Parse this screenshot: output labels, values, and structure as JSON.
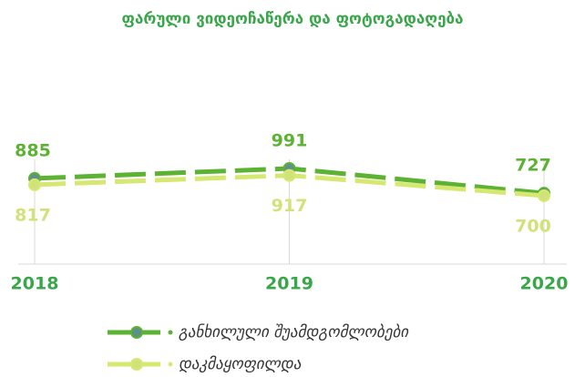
{
  "chart_data": {
    "type": "line",
    "title": "ფარული ვიდეოჩაწერა და ფოტოგადაღება",
    "categories": [
      "2018",
      "2019",
      "2020"
    ],
    "series": [
      {
        "name": "განხილული შუამდგომლობები",
        "color": "#5cb233",
        "values": [
          885,
          991,
          727
        ]
      },
      {
        "name": "დაკმაყოფილდა",
        "color": "#d6e872",
        "values": [
          817,
          917,
          700
        ]
      }
    ],
    "grid": true
  }
}
